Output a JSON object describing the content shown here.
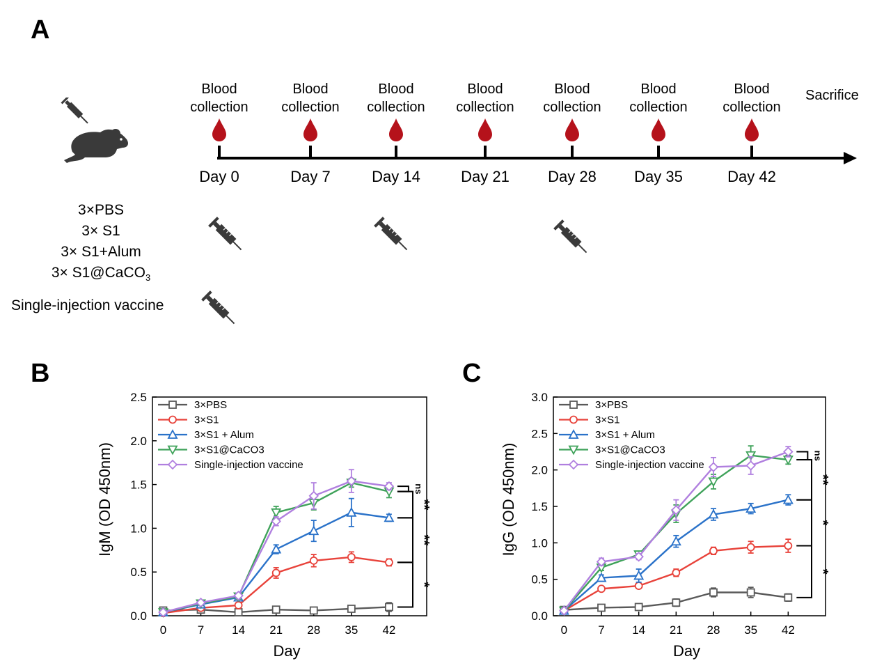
{
  "panels": {
    "a": "A",
    "b": "B",
    "c": "C"
  },
  "timeline": {
    "blood_label": [
      "Blood",
      "collection"
    ],
    "days": [
      "Day 0",
      "Day 7",
      "Day 14",
      "Day 21",
      "Day 28",
      "Day 35",
      "Day 42"
    ],
    "end_label": "Sacrifice",
    "injection_days": [
      "Day 0",
      "Day 14",
      "Day 28"
    ],
    "blood_color": "#b5121b"
  },
  "groups": {
    "g1": "3×PBS",
    "g2": "3× S1",
    "g3": "3× S1+Alum",
    "g4_main": "3× S1@CaCO",
    "g4_sub": "3",
    "single": "Single-injection vaccine"
  },
  "chart_data": [
    {
      "type": "line",
      "panel": "B",
      "xlabel": "Day",
      "ylabel": "IgM (OD 450nm)",
      "x": [
        0,
        7,
        14,
        21,
        28,
        35,
        42
      ],
      "xticks": [
        "0",
        "7",
        "14",
        "21",
        "28",
        "35",
        "42"
      ],
      "ylim": [
        0,
        2.5
      ],
      "yticks": [
        "0.0",
        "0.5",
        "1.0",
        "1.5",
        "2.0",
        "2.5"
      ],
      "legend_position": "top-left",
      "series": [
        {
          "name": "3×PBS",
          "color": "#595959",
          "marker": "square",
          "values": [
            0.06,
            0.07,
            0.04,
            0.07,
            0.06,
            0.08,
            0.1
          ],
          "errors": [
            0.03,
            0.02,
            0.02,
            0.02,
            0.02,
            0.02,
            0.05
          ]
        },
        {
          "name": "3×S1",
          "color": "#e8423a",
          "marker": "circle",
          "values": [
            0.03,
            0.09,
            0.12,
            0.49,
            0.63,
            0.67,
            0.61
          ],
          "errors": [
            0.02,
            0.02,
            0.03,
            0.06,
            0.07,
            0.06,
            0.04
          ]
        },
        {
          "name": "3×S1 + Alum",
          "color": "#2a72c9",
          "marker": "triangle",
          "values": [
            0.04,
            0.13,
            0.21,
            0.76,
            0.97,
            1.18,
            1.12
          ],
          "errors": [
            0.02,
            0.02,
            0.03,
            0.05,
            0.12,
            0.16,
            0.04
          ]
        },
        {
          "name": "3×S1@CaCO3",
          "color": "#3fa25a",
          "marker": "triangle-down",
          "values": [
            0.04,
            0.14,
            0.22,
            1.18,
            1.29,
            1.52,
            1.42
          ],
          "errors": [
            0.02,
            0.02,
            0.03,
            0.07,
            0.08,
            0.05,
            0.07
          ]
        },
        {
          "name": "Single-injection vaccine",
          "color": "#b07fdf",
          "marker": "diamond",
          "values": [
            0.04,
            0.15,
            0.23,
            1.08,
            1.37,
            1.54,
            1.48
          ],
          "errors": [
            0.02,
            0.02,
            0.03,
            0.05,
            0.15,
            0.13,
            0.04
          ]
        }
      ],
      "significance": [
        "ns",
        "**",
        "**",
        "*"
      ]
    },
    {
      "type": "line",
      "panel": "C",
      "xlabel": "Day",
      "ylabel": "IgG (OD 450nm)",
      "x": [
        0,
        7,
        14,
        21,
        28,
        35,
        42
      ],
      "xticks": [
        "0",
        "7",
        "14",
        "21",
        "28",
        "35",
        "42"
      ],
      "ylim": [
        0,
        3.0
      ],
      "yticks": [
        "0.0",
        "0.5",
        "1.0",
        "1.5",
        "2.0",
        "2.5",
        "3.0"
      ],
      "legend_position": "top-left",
      "series": [
        {
          "name": "3×PBS",
          "color": "#595959",
          "marker": "square",
          "values": [
            0.08,
            0.11,
            0.12,
            0.18,
            0.32,
            0.32,
            0.25
          ],
          "errors": [
            0.02,
            0.03,
            0.03,
            0.05,
            0.06,
            0.07,
            0.05
          ]
        },
        {
          "name": "3×S1",
          "color": "#e8423a",
          "marker": "circle",
          "values": [
            0.07,
            0.37,
            0.41,
            0.59,
            0.89,
            0.94,
            0.96
          ],
          "errors": [
            0.02,
            0.03,
            0.03,
            0.05,
            0.05,
            0.08,
            0.09
          ]
        },
        {
          "name": "3×S1 + Alum",
          "color": "#2a72c9",
          "marker": "triangle",
          "values": [
            0.07,
            0.52,
            0.55,
            1.02,
            1.39,
            1.47,
            1.59
          ],
          "errors": [
            0.02,
            0.04,
            0.09,
            0.08,
            0.08,
            0.07,
            0.07
          ]
        },
        {
          "name": "3×S1@CaCO3",
          "color": "#3fa25a",
          "marker": "triangle-down",
          "values": [
            0.07,
            0.66,
            0.84,
            1.4,
            1.84,
            2.2,
            2.14
          ],
          "errors": [
            0.02,
            0.04,
            0.03,
            0.12,
            0.1,
            0.13,
            0.06
          ]
        },
        {
          "name": "Single-injection vaccine",
          "color": "#b07fdf",
          "marker": "diamond",
          "values": [
            0.07,
            0.74,
            0.81,
            1.45,
            2.04,
            2.06,
            2.25
          ],
          "errors": [
            0.02,
            0.05,
            0.04,
            0.14,
            0.13,
            0.12,
            0.07
          ]
        }
      ],
      "significance": [
        "ns",
        "**",
        "*",
        "*"
      ]
    }
  ]
}
